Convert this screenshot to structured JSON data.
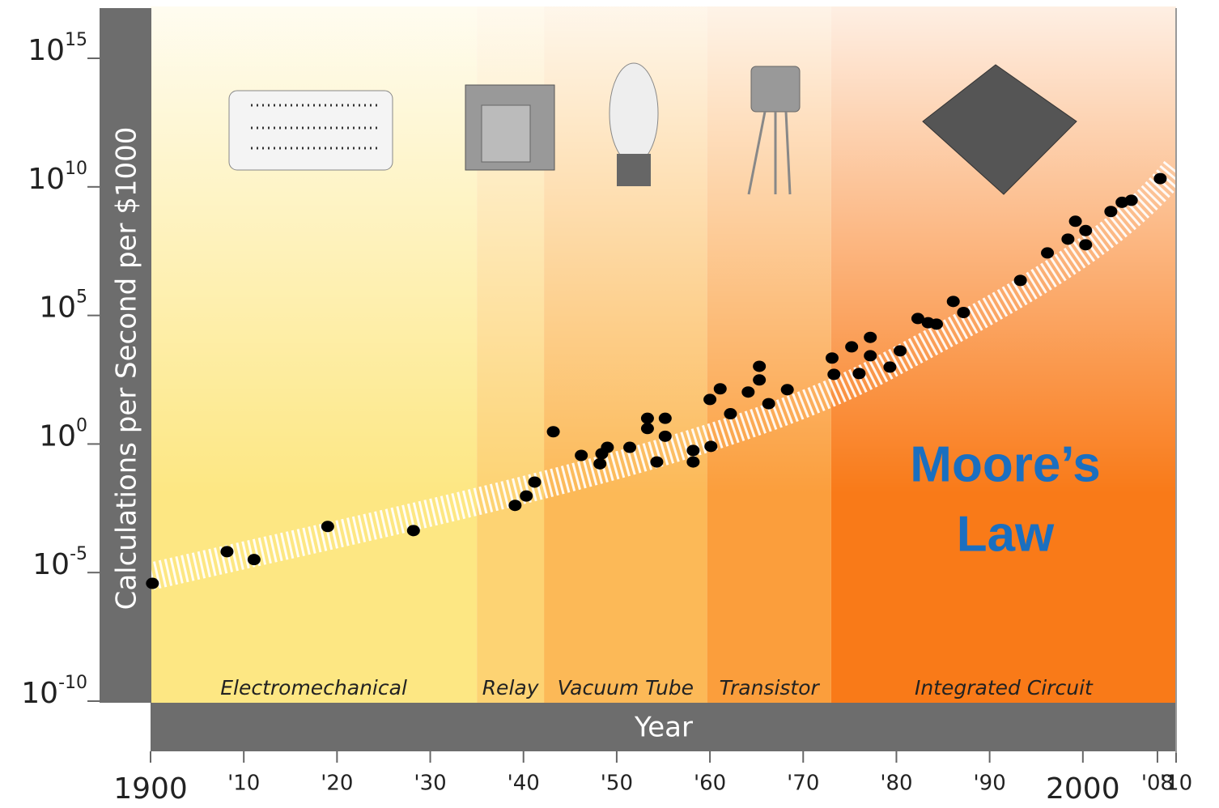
{
  "chart_data": {
    "type": "scatter",
    "y_label": "Calculations per Second per $1000",
    "x_label": "Year",
    "annotation_lines": [
      "Moore’s",
      "Law"
    ],
    "annotation_color": "#1a6fc0",
    "yscale": "log",
    "xlim": [
      1900,
      2010
    ],
    "ylim": [
      1e-10,
      1e+17
    ],
    "yticks": [
      {
        "value": 1e-10,
        "label": "10",
        "power": "-10"
      },
      {
        "value": 1e-05,
        "label": "10",
        "power": "-5"
      },
      {
        "value": 1,
        "label": "10",
        "power": "0"
      },
      {
        "value": 100000.0,
        "label": "10",
        "power": "5"
      },
      {
        "value": 10000000000.0,
        "label": "10",
        "power": "10"
      },
      {
        "value": 1000000000000000.0,
        "label": "10",
        "power": "15"
      }
    ],
    "xticks": [
      1900,
      {
        "value": 1910,
        "label": "'10"
      },
      {
        "value": 1920,
        "label": "'20"
      },
      {
        "value": 1930,
        "label": "'30"
      },
      {
        "value": 1940,
        "label": "'40"
      },
      {
        "value": 1950,
        "label": "'50"
      },
      {
        "value": 1960,
        "label": "'60"
      },
      {
        "value": 1970,
        "label": "'70"
      },
      {
        "value": 1980,
        "label": "'80"
      },
      {
        "value": 1990,
        "label": "'90"
      },
      2000,
      {
        "value": 2008,
        "label": "'08"
      },
      {
        "value": 2010,
        "label": "'10"
      }
    ],
    "eras": [
      {
        "name": "Electromechanical",
        "start": 1900,
        "end": 1935,
        "color": "#fde783"
      },
      {
        "name": "Relay",
        "start": 1935,
        "end": 1942.2,
        "color": "#fdd373"
      },
      {
        "name": "Vacuum Tube",
        "start": 1942.2,
        "end": 1959.7,
        "color": "#fcb957"
      },
      {
        "name": "Transistor",
        "start": 1959.7,
        "end": 1973,
        "color": "#fb9e3c"
      },
      {
        "name": "Integrated Circuit",
        "start": 1973,
        "end": 2010,
        "color": "#f97a18"
      }
    ],
    "color": "#000000",
    "x": [
      1900.2,
      1908.2,
      1911.1,
      1919.0,
      1928.2,
      1939.1,
      1940.3,
      1941.2,
      1943.2,
      1946.2,
      1948.2,
      1948.4,
      1949.0,
      1951.4,
      1953.3,
      1953.3,
      1954.3,
      1955.2,
      1955.2,
      1958.2,
      1958.2,
      1960.1,
      1960.0,
      1961.1,
      1962.2,
      1964.1,
      1965.3,
      1965.3,
      1966.3,
      1968.3,
      1973.1,
      1973.3,
      1975.2,
      1976.0,
      1977.2,
      1977.2,
      1979.3,
      1980.4,
      1982.3,
      1983.4,
      1984.3,
      1986.1,
      1987.2,
      1993.3,
      1996.2,
      1998.4,
      1999.2,
      2000.3,
      2000.3,
      2003.0,
      2004.2,
      2005.2,
      2008.3
    ],
    "values": [
      3.8e-06,
      6.5e-05,
      3.2e-05,
      0.00062,
      0.00043,
      0.0041,
      0.0095,
      0.033,
      3.0,
      0.36,
      0.17,
      0.42,
      0.74,
      0.74,
      10,
      4.0,
      0.2,
      10,
      2.0,
      0.56,
      0.2,
      0.81,
      54,
      140,
      15,
      105,
      1050,
      310,
      37,
      130,
      2200,
      510,
      6000,
      550,
      14000,
      2700,
      980,
      4200,
      76000,
      52000,
      46000,
      350000,
      130000,
      2300000,
      27000000,
      93000000,
      460000000,
      200000000,
      56000000,
      1100000000.0,
      2500000000.0,
      3000000000.0,
      21000000000.0
    ]
  }
}
